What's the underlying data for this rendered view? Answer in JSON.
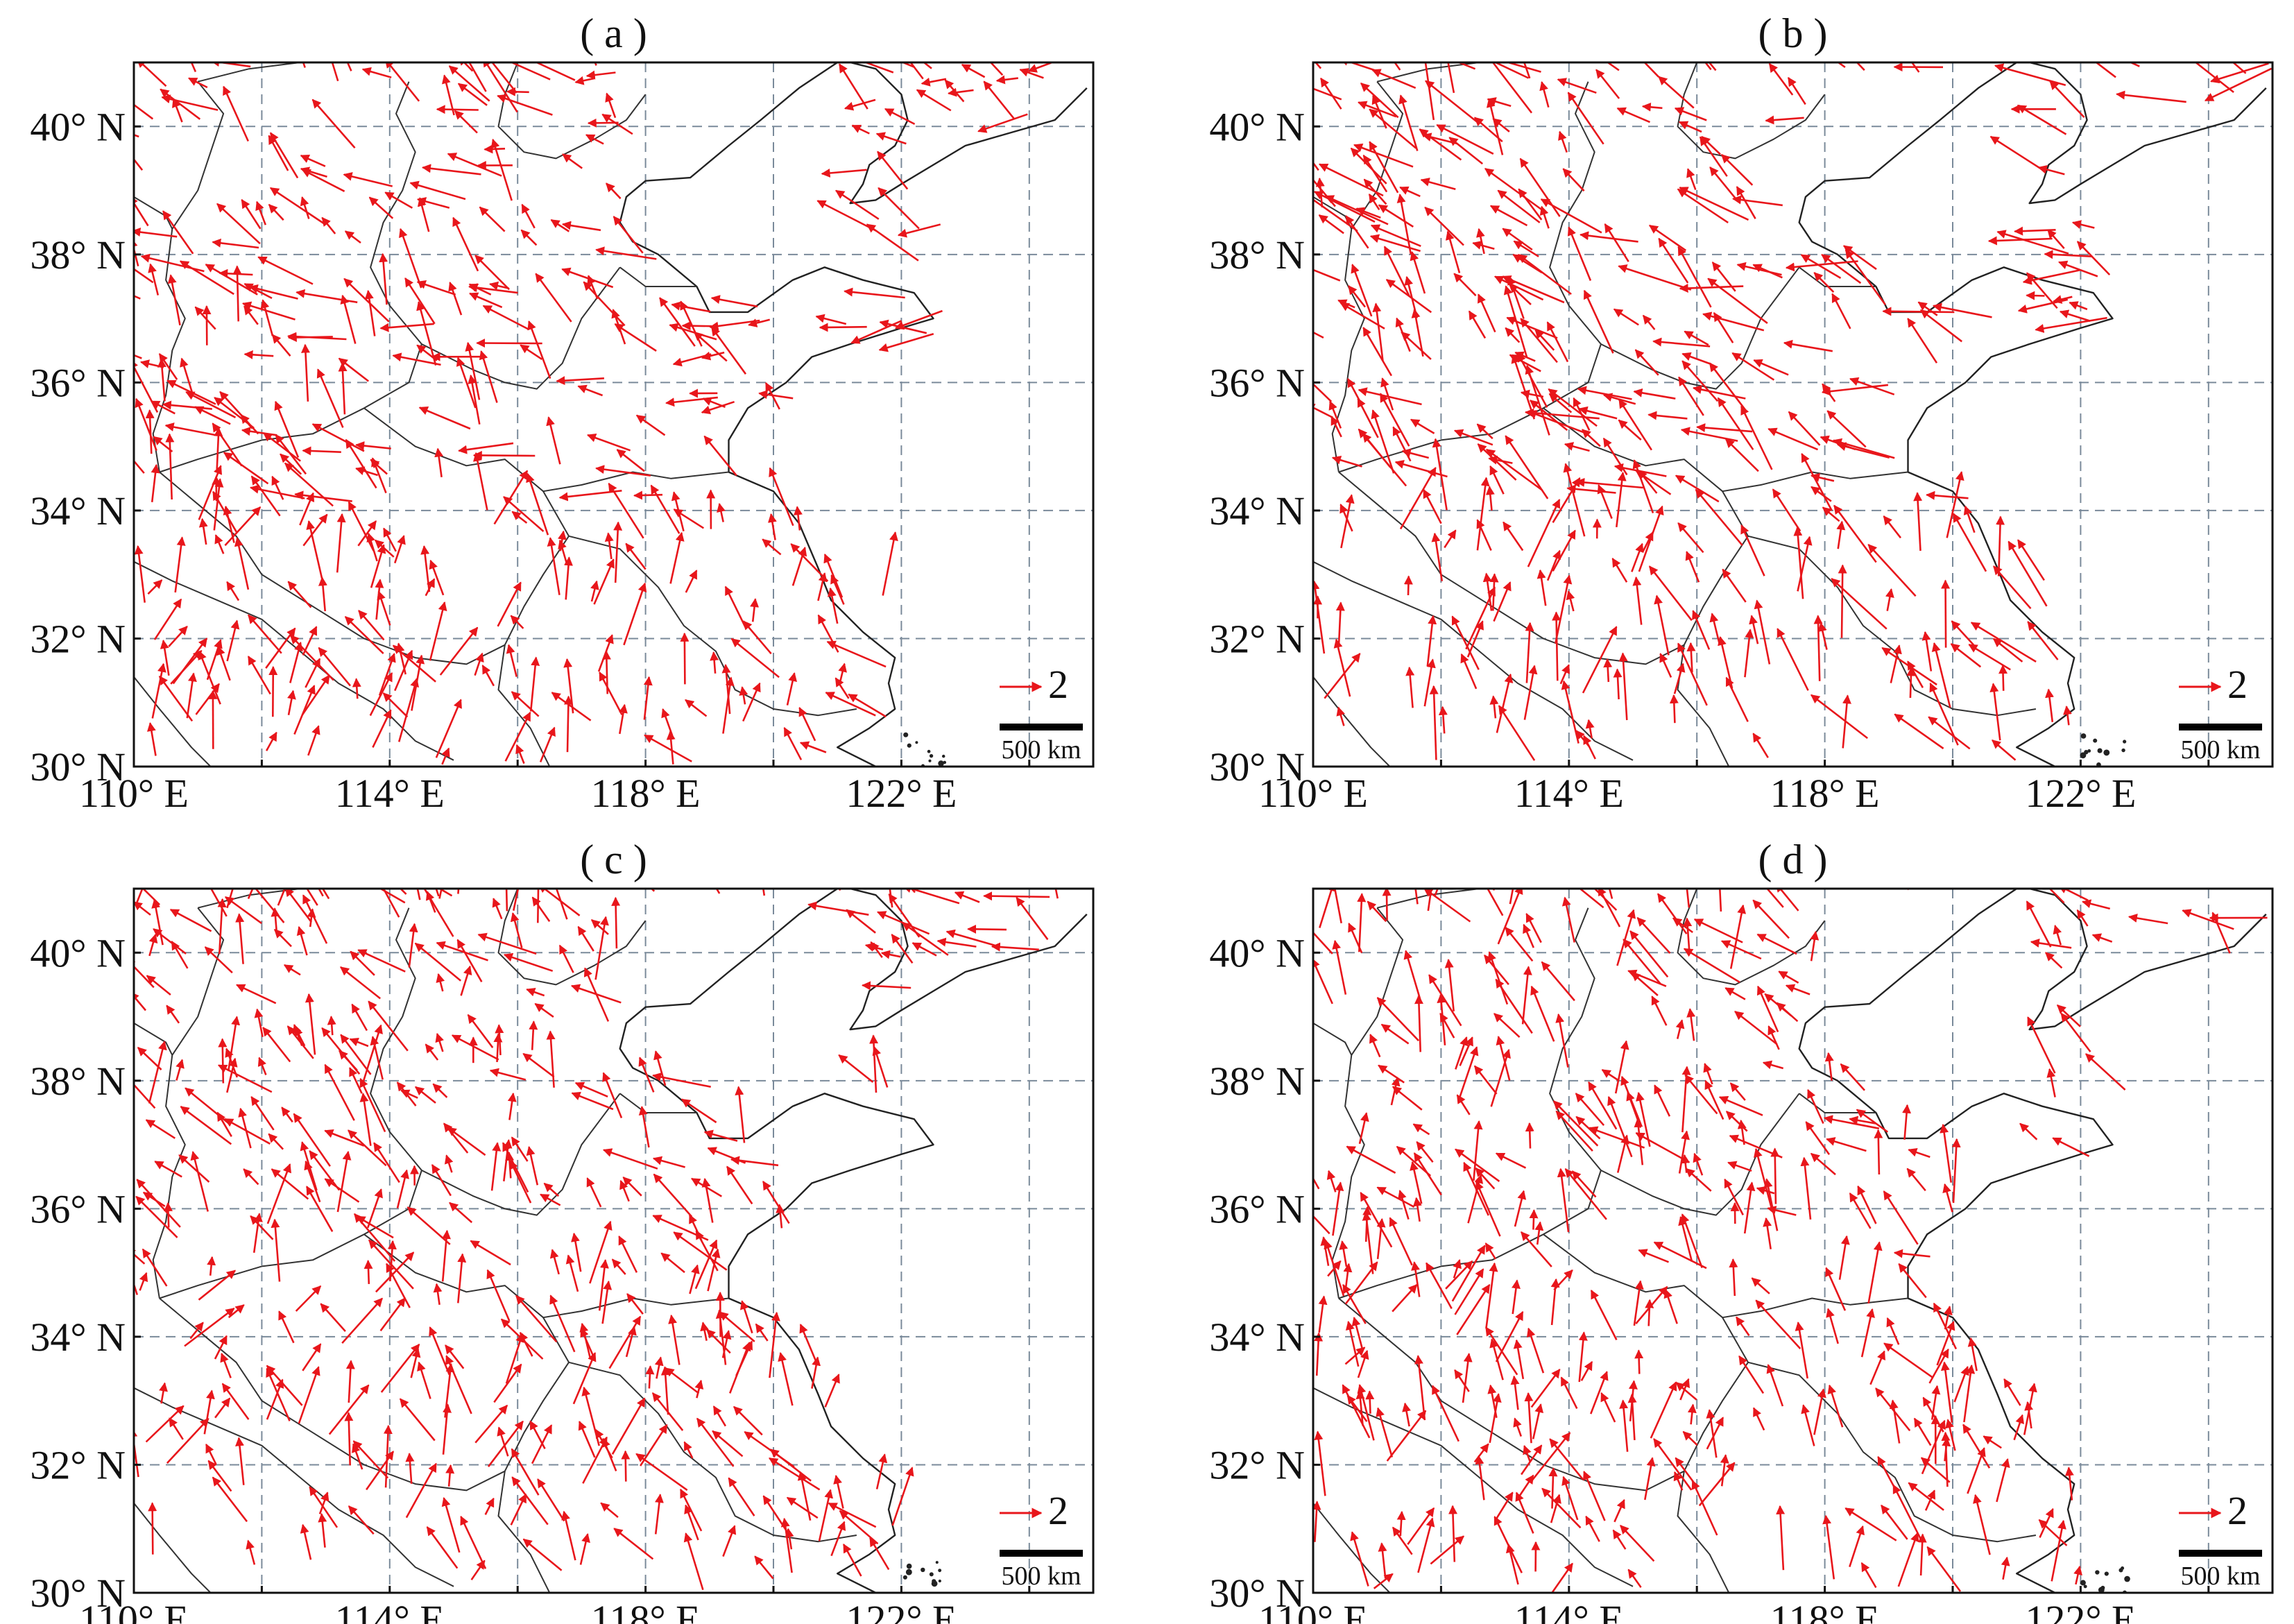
{
  "colors": {
    "vector": "#e8161b",
    "frame": "#111111",
    "grid": "#7a8a9a",
    "boundary": "#333333"
  },
  "map_extent": {
    "lon_min": 110,
    "lon_max": 125,
    "lat_min": 30,
    "lat_max": 41
  },
  "grid": {
    "lon_ticks": [
      110,
      112,
      114,
      116,
      118,
      120,
      122,
      124
    ],
    "lat_ticks": [
      30,
      32,
      34,
      36,
      38,
      40
    ],
    "style": "dashed"
  },
  "axis_labels": {
    "x": [
      "110° E",
      "114° E",
      "118° E",
      "122° E"
    ],
    "y": [
      "30° N",
      "32° N",
      "34° N",
      "36° N",
      "38° N",
      "40° N"
    ]
  },
  "legend": {
    "reference_vector_value": "2",
    "scale_bar_label": "500 km"
  },
  "panels": [
    {
      "id": "a",
      "title": "( a )"
    },
    {
      "id": "b",
      "title": "( b )"
    },
    {
      "id": "c",
      "title": "( c )"
    },
    {
      "id": "d",
      "title": "( d )"
    }
  ]
}
